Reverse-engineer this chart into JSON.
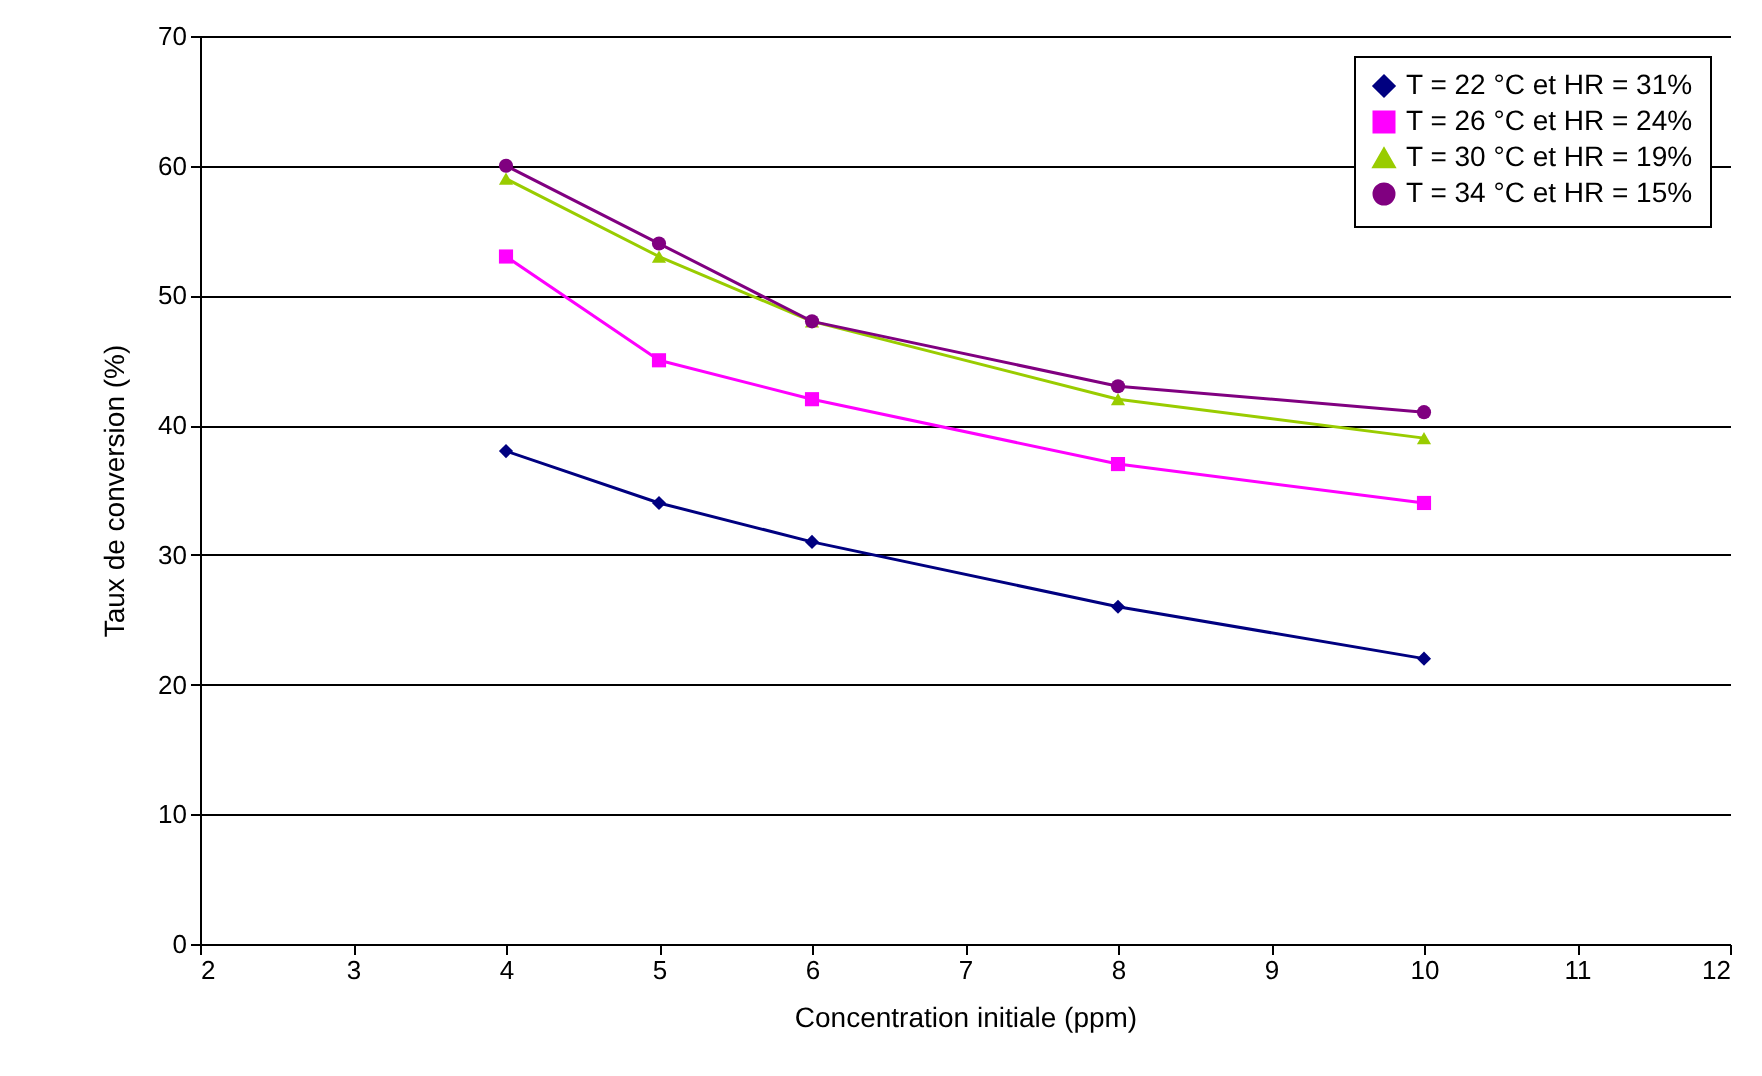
{
  "chart_data": {
    "type": "line",
    "xlabel": "Concentration initiale (ppm)",
    "ylabel": "Taux de conversion (%)",
    "x": [
      4,
      5,
      6,
      8,
      10
    ],
    "series": [
      {
        "name": "T = 22 °C et HR = 31%",
        "color": "#000080",
        "marker": "diamond",
        "values": [
          38,
          34,
          31,
          26,
          22
        ]
      },
      {
        "name": "T = 26 °C et HR = 24%",
        "color": "#ff00ff",
        "marker": "square",
        "values": [
          53,
          45,
          42,
          37,
          34
        ]
      },
      {
        "name": "T = 30 °C et HR = 19%",
        "color": "#99cc00",
        "marker": "triangle",
        "values": [
          59,
          53,
          48,
          42,
          39
        ]
      },
      {
        "name": "T = 34 °C et HR = 15%",
        "color": "#800080",
        "marker": "circle",
        "values": [
          60,
          54,
          48,
          43,
          41
        ]
      }
    ],
    "xlim": [
      2,
      12
    ],
    "xticks": [
      2,
      3,
      4,
      5,
      6,
      7,
      8,
      9,
      10,
      11,
      12
    ],
    "ylim": [
      0,
      70
    ],
    "yticks": [
      0,
      10,
      20,
      30,
      40,
      50,
      60,
      70
    ],
    "grid": "y",
    "legend": "top right"
  }
}
